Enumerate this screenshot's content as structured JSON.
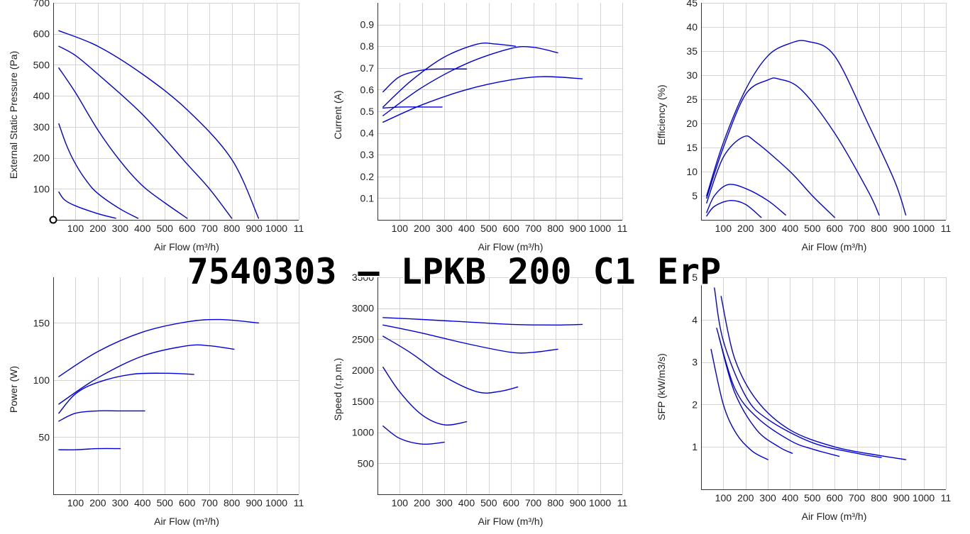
{
  "title": "7540303 –  LPKB 200 C1 ErP",
  "colors": {
    "curve": "#0000dd",
    "grid": "#d4d4d4",
    "axis": "#333333"
  },
  "chart_data": [
    {
      "type": "line",
      "xlabel": "Air Flow (m³/h)",
      "ylabel": "External Static Pressure (Pa)",
      "xlim": [
        0,
        1100
      ],
      "ylim": [
        0,
        700
      ],
      "xticks": [
        "100",
        "200",
        "300",
        "400",
        "500",
        "600",
        "700",
        "800",
        "900",
        "1000",
        "11"
      ],
      "yticks": [
        "100",
        "200",
        "300",
        "400",
        "500",
        "600",
        "700"
      ],
      "series": [
        {
          "points": [
            [
              25,
              610
            ],
            [
              200,
              560
            ],
            [
              400,
              470
            ],
            [
              600,
              355
            ],
            [
              800,
              195
            ],
            [
              920,
              5
            ]
          ]
        },
        {
          "points": [
            [
              25,
              560
            ],
            [
              100,
              530
            ],
            [
              200,
              470
            ],
            [
              400,
              340
            ],
            [
              600,
              180
            ],
            [
              700,
              100
            ],
            [
              800,
              5
            ]
          ]
        },
        {
          "points": [
            [
              25,
              490
            ],
            [
              100,
              410
            ],
            [
              200,
              290
            ],
            [
              300,
              190
            ],
            [
              400,
              110
            ],
            [
              500,
              55
            ],
            [
              600,
              5
            ]
          ]
        },
        {
          "points": [
            [
              25,
              310
            ],
            [
              60,
              240
            ],
            [
              100,
              180
            ],
            [
              150,
              125
            ],
            [
              200,
              85
            ],
            [
              300,
              35
            ],
            [
              380,
              5
            ]
          ]
        },
        {
          "points": [
            [
              25,
              90
            ],
            [
              50,
              65
            ],
            [
              100,
              45
            ],
            [
              200,
              20
            ],
            [
              280,
              5
            ]
          ]
        }
      ]
    },
    {
      "type": "line",
      "xlabel": "Air Flow (m³/h)",
      "ylabel": "Current (A)",
      "xlim": [
        0,
        1100
      ],
      "ylim": [
        0,
        1
      ],
      "xticks": [
        "100",
        "200",
        "300",
        "400",
        "500",
        "600",
        "700",
        "800",
        "900",
        "1000",
        "11"
      ],
      "yticks": [
        "0.1",
        "0.2",
        "0.3",
        "0.4",
        "0.5",
        "0.6",
        "0.7",
        "0.8",
        "0.9"
      ],
      "series": [
        {
          "points": [
            [
              25,
              0.45
            ],
            [
              200,
              0.53
            ],
            [
              400,
              0.6
            ],
            [
              600,
              0.645
            ],
            [
              750,
              0.66
            ],
            [
              920,
              0.65
            ]
          ]
        },
        {
          "points": [
            [
              25,
              0.48
            ],
            [
              200,
              0.61
            ],
            [
              400,
              0.72
            ],
            [
              600,
              0.79
            ],
            [
              700,
              0.795
            ],
            [
              810,
              0.77
            ]
          ]
        },
        {
          "points": [
            [
              25,
              0.52
            ],
            [
              150,
              0.64
            ],
            [
              300,
              0.75
            ],
            [
              450,
              0.81
            ],
            [
              530,
              0.81
            ],
            [
              620,
              0.8
            ]
          ]
        },
        {
          "points": [
            [
              25,
              0.59
            ],
            [
              100,
              0.66
            ],
            [
              200,
              0.69
            ],
            [
              300,
              0.695
            ],
            [
              400,
              0.695
            ]
          ]
        },
        {
          "points": [
            [
              25,
              0.515
            ],
            [
              100,
              0.52
            ],
            [
              200,
              0.52
            ],
            [
              290,
              0.52
            ]
          ]
        }
      ]
    },
    {
      "type": "line",
      "xlabel": "Air Flow (m³/h)",
      "ylabel": "Efficiency (%)",
      "xlim": [
        0,
        1100
      ],
      "ylim": [
        0,
        45
      ],
      "xticks": [
        "100",
        "200",
        "300",
        "400",
        "500",
        "600",
        "700",
        "800",
        "900",
        "1000",
        "11"
      ],
      "yticks": [
        "5",
        "10",
        "15",
        "20",
        "25",
        "30",
        "35",
        "40",
        "45"
      ],
      "series": [
        {
          "points": [
            [
              25,
              5
            ],
            [
              100,
              16
            ],
            [
              200,
              27
            ],
            [
              300,
              34
            ],
            [
              400,
              36.6
            ],
            [
              480,
              37
            ],
            [
              600,
              34
            ],
            [
              750,
              20
            ],
            [
              870,
              8
            ],
            [
              920,
              1
            ]
          ]
        },
        {
          "points": [
            [
              25,
              4.5
            ],
            [
              100,
              15
            ],
            [
              200,
              26
            ],
            [
              300,
              29
            ],
            [
              350,
              29.2
            ],
            [
              450,
              27
            ],
            [
              600,
              18
            ],
            [
              750,
              6
            ],
            [
              800,
              1
            ]
          ]
        },
        {
          "points": [
            [
              25,
              3.5
            ],
            [
              100,
              13
            ],
            [
              190,
              17.2
            ],
            [
              250,
              16
            ],
            [
              400,
              10
            ],
            [
              500,
              5
            ],
            [
              600,
              0.5
            ]
          ]
        },
        {
          "points": [
            [
              25,
              1.5
            ],
            [
              60,
              5
            ],
            [
              120,
              7.3
            ],
            [
              200,
              6.5
            ],
            [
              300,
              4
            ],
            [
              380,
              1
            ]
          ]
        },
        {
          "points": [
            [
              25,
              0.8
            ],
            [
              60,
              2.8
            ],
            [
              130,
              4
            ],
            [
              200,
              3.2
            ],
            [
              270,
              0.5
            ]
          ]
        }
      ]
    },
    {
      "type": "line",
      "xlabel": "Air Flow (m³/h)",
      "ylabel": "Power (W)",
      "xlim": [
        0,
        1100
      ],
      "ylim": [
        0,
        190
      ],
      "xticks": [
        "100",
        "200",
        "300",
        "400",
        "500",
        "600",
        "700",
        "800",
        "900",
        "1000",
        "11"
      ],
      "yticks": [
        "50",
        "100",
        "150"
      ],
      "series": [
        {
          "points": [
            [
              25,
              103
            ],
            [
              200,
              125
            ],
            [
              400,
              142
            ],
            [
              600,
              151
            ],
            [
              750,
              153
            ],
            [
              920,
              150
            ]
          ]
        },
        {
          "points": [
            [
              25,
              79
            ],
            [
              200,
              102
            ],
            [
              400,
              121
            ],
            [
              600,
              130
            ],
            [
              700,
              130
            ],
            [
              810,
              127
            ]
          ]
        },
        {
          "points": [
            [
              25,
              71
            ],
            [
              100,
              88
            ],
            [
              200,
              98
            ],
            [
              350,
              105
            ],
            [
              500,
              106
            ],
            [
              630,
              105
            ]
          ]
        },
        {
          "points": [
            [
              25,
              64
            ],
            [
              100,
              71
            ],
            [
              200,
              73
            ],
            [
              300,
              73
            ],
            [
              410,
              73
            ]
          ]
        },
        {
          "points": [
            [
              25,
              39
            ],
            [
              100,
              39
            ],
            [
              200,
              40
            ],
            [
              300,
              40
            ]
          ]
        }
      ]
    },
    {
      "type": "line",
      "xlabel": "Air Flow (m³/h)",
      "ylabel": "Speed (r.p.m.)",
      "xlim": [
        0,
        1100
      ],
      "ylim": [
        0,
        3500
      ],
      "xticks": [
        "100",
        "200",
        "300",
        "400",
        "500",
        "600",
        "700",
        "800",
        "900",
        "1000",
        "11"
      ],
      "yticks": [
        "500",
        "1000",
        "1500",
        "2000",
        "2500",
        "3000",
        "3500"
      ],
      "series": [
        {
          "points": [
            [
              25,
              2850
            ],
            [
              200,
              2820
            ],
            [
              400,
              2780
            ],
            [
              600,
              2740
            ],
            [
              800,
              2730
            ],
            [
              920,
              2740
            ]
          ]
        },
        {
          "points": [
            [
              25,
              2730
            ],
            [
              200,
              2600
            ],
            [
              400,
              2430
            ],
            [
              600,
              2290
            ],
            [
              700,
              2290
            ],
            [
              810,
              2340
            ]
          ]
        },
        {
          "points": [
            [
              25,
              2550
            ],
            [
              150,
              2280
            ],
            [
              300,
              1900
            ],
            [
              450,
              1650
            ],
            [
              550,
              1660
            ],
            [
              630,
              1730
            ]
          ]
        },
        {
          "points": [
            [
              25,
              2050
            ],
            [
              100,
              1650
            ],
            [
              200,
              1280
            ],
            [
              300,
              1120
            ],
            [
              400,
              1170
            ]
          ]
        },
        {
          "points": [
            [
              25,
              1100
            ],
            [
              100,
              900
            ],
            [
              200,
              810
            ],
            [
              300,
              840
            ]
          ]
        }
      ]
    },
    {
      "type": "line",
      "xlabel": "Air Flow (m³/h)",
      "ylabel": "SFP (kW/m3/s)",
      "xlim": [
        0,
        1100
      ],
      "ylim": [
        0,
        5
      ],
      "xticks": [
        "100",
        "200",
        "300",
        "400",
        "500",
        "600",
        "700",
        "800",
        "900",
        "1000",
        "11"
      ],
      "yticks": [
        "1",
        "2",
        "3",
        "4",
        "5"
      ],
      "series": [
        {
          "points": [
            [
              90,
              4.55
            ],
            [
              150,
              3.1
            ],
            [
              250,
              2.1
            ],
            [
              400,
              1.4
            ],
            [
              600,
              1.0
            ],
            [
              800,
              0.8
            ],
            [
              920,
              0.7
            ]
          ]
        },
        {
          "points": [
            [
              60,
              4.75
            ],
            [
              100,
              3.5
            ],
            [
              200,
              2.2
            ],
            [
              300,
              1.65
            ],
            [
              500,
              1.1
            ],
            [
              700,
              0.85
            ],
            [
              810,
              0.75
            ]
          ]
        },
        {
          "points": [
            [
              70,
              3.8
            ],
            [
              150,
              2.4
            ],
            [
              250,
              1.7
            ],
            [
              400,
              1.15
            ],
            [
              500,
              0.95
            ],
            [
              620,
              0.78
            ]
          ]
        },
        {
          "points": [
            [
              80,
              3.6
            ],
            [
              150,
              2.3
            ],
            [
              250,
              1.4
            ],
            [
              350,
              1.0
            ],
            [
              410,
              0.85
            ]
          ]
        },
        {
          "points": [
            [
              45,
              3.3
            ],
            [
              100,
              2.0
            ],
            [
              160,
              1.3
            ],
            [
              230,
              0.9
            ],
            [
              300,
              0.7
            ]
          ]
        }
      ]
    }
  ]
}
